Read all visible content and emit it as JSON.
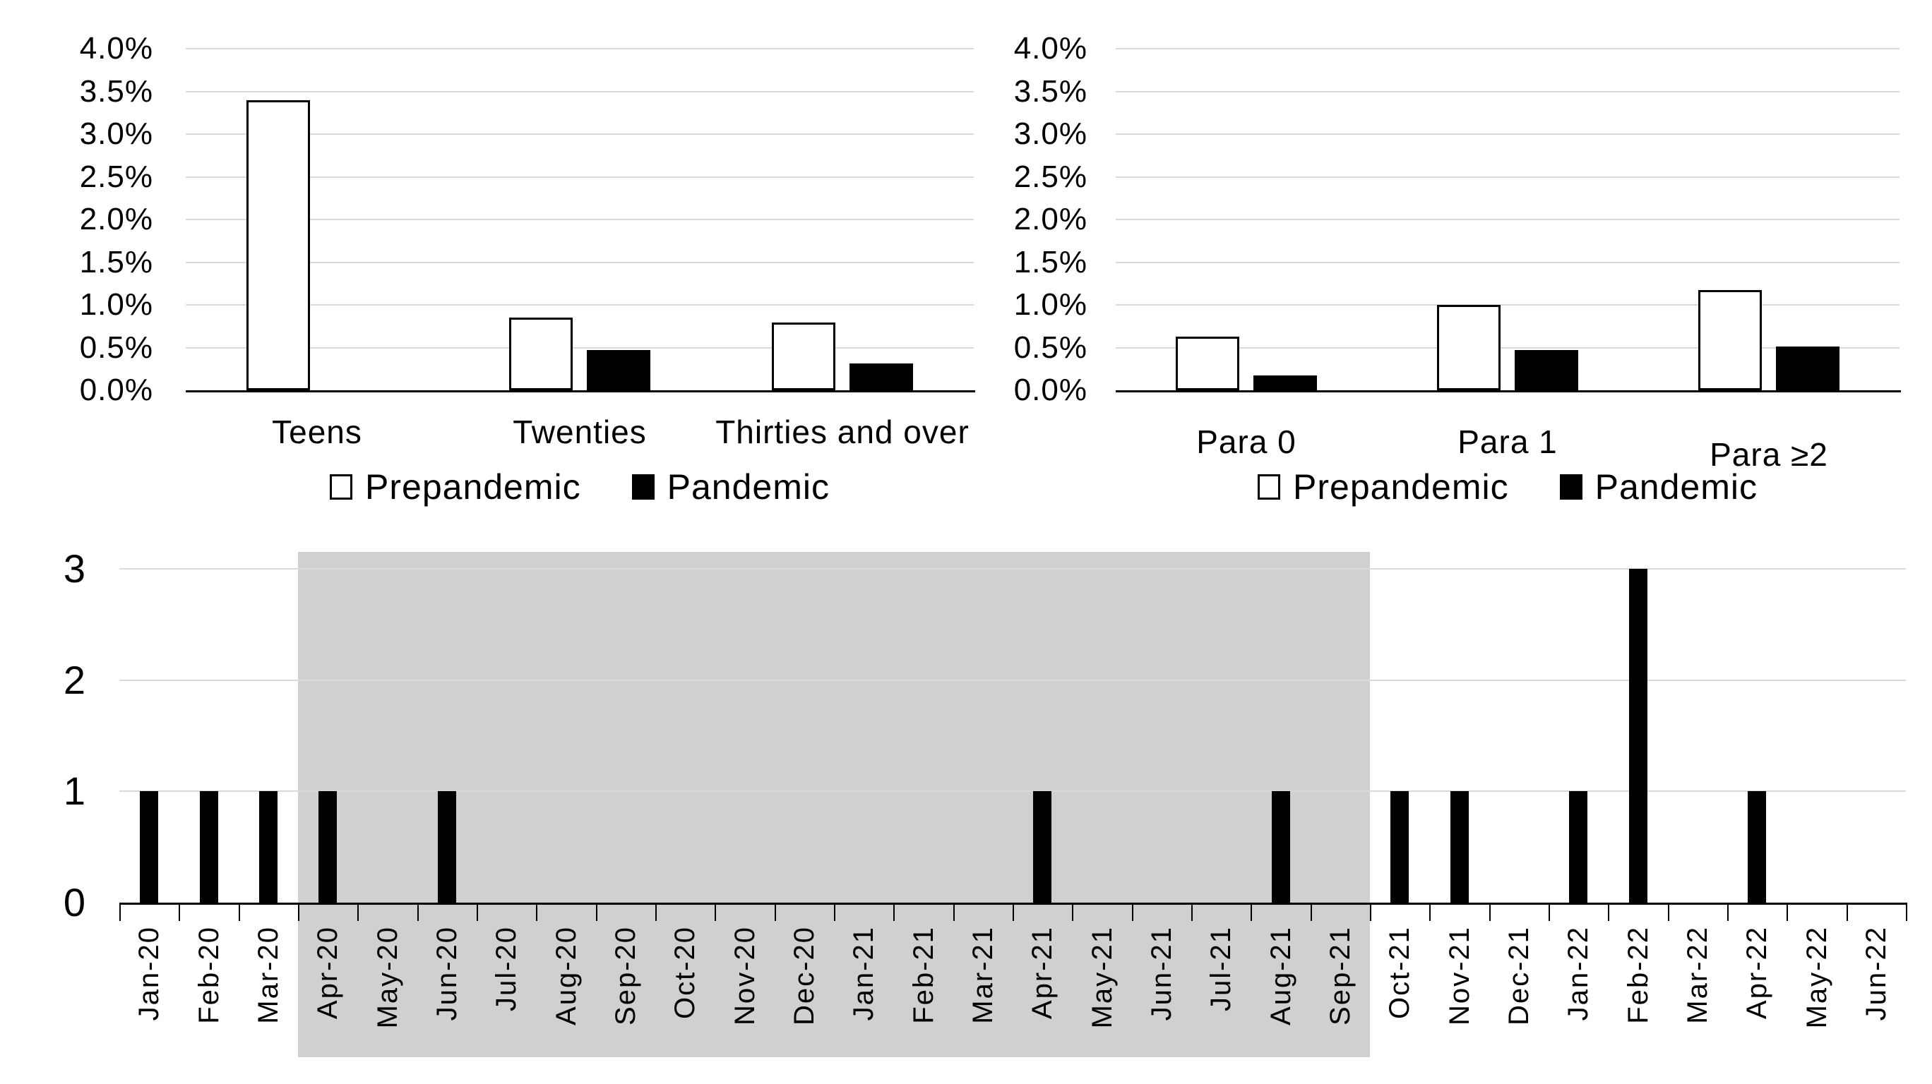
{
  "figure": {
    "background": "#ffffff",
    "colors": {
      "bar_fill_black": "#000000",
      "bar_fill_white": "#ffffff",
      "bar_border": "#000000",
      "gridline": "#d9d9d9",
      "axis": "#000000",
      "shaded_region": "#d0d0d0",
      "text": "#000000"
    }
  },
  "chart_data": {
    "age_groups": {
      "type": "bar",
      "title": "",
      "categories": [
        "Teens",
        "Twenties",
        "Thirties and over"
      ],
      "series": [
        {
          "name": "Prepandemic",
          "fill": "white",
          "values_pct": [
            3.4,
            0.85,
            0.79
          ]
        },
        {
          "name": "Pandemic",
          "fill": "black",
          "values_pct": [
            0,
            0.47,
            0.31
          ]
        }
      ],
      "y_ticks": [
        "0.0%",
        "0.5%",
        "1.0%",
        "1.5%",
        "2.0%",
        "2.5%",
        "3.0%",
        "3.5%",
        "4.0%"
      ],
      "ylim_pct": [
        0,
        4
      ],
      "xlabel": "",
      "ylabel": "",
      "grid": true,
      "legend_position": "bottom",
      "legend": [
        "Prepandemic",
        "Pandemic"
      ]
    },
    "parity": {
      "type": "bar",
      "title": "",
      "categories": [
        "Para 0",
        "Para 1",
        "Para ≥2"
      ],
      "series": [
        {
          "name": "Prepandemic",
          "fill": "white",
          "values_pct": [
            0.63,
            1.0,
            1.17
          ]
        },
        {
          "name": "Pandemic",
          "fill": "black",
          "values_pct": [
            0.17,
            0.47,
            0.51
          ]
        }
      ],
      "y_ticks": [
        "0.0%",
        "0.5%",
        "1.0%",
        "1.5%",
        "2.0%",
        "2.5%",
        "3.0%",
        "3.5%",
        "4.0%"
      ],
      "ylim_pct": [
        0,
        4
      ],
      "xlabel": "",
      "ylabel": "",
      "grid": true,
      "legend_position": "bottom",
      "legend": [
        "Prepandemic",
        "Pandemic"
      ]
    },
    "monthly_cases": {
      "type": "bar",
      "title": "",
      "categories": [
        "Jan-20",
        "Feb-20",
        "Mar-20",
        "Apr-20",
        "May-20",
        "Jun-20",
        "Jul-20",
        "Aug-20",
        "Sep-20",
        "Oct-20",
        "Nov-20",
        "Dec-20",
        "Jan-21",
        "Feb-21",
        "Mar-21",
        "Apr-21",
        "May-21",
        "Jun-21",
        "Jul-21",
        "Aug-21",
        "Sep-21",
        "Oct-21",
        "Nov-21",
        "Dec-21",
        "Jan-22",
        "Feb-22",
        "Mar-22",
        "Apr-22",
        "May-22",
        "Jun-22"
      ],
      "values": [
        1,
        1,
        1,
        1,
        0,
        1,
        0,
        0,
        0,
        0,
        0,
        0,
        0,
        0,
        0,
        1,
        0,
        0,
        0,
        1,
        0,
        1,
        1,
        0,
        1,
        3,
        0,
        1,
        0,
        0
      ],
      "y_ticks": [
        "0",
        "1",
        "2",
        "3"
      ],
      "ylim": [
        0,
        3
      ],
      "xlabel": "",
      "ylabel": "",
      "grid": true,
      "legend_position": "none",
      "shaded_region": {
        "from": "Apr-20",
        "to": "Sep-21",
        "color": "#d0d0d0"
      }
    }
  }
}
